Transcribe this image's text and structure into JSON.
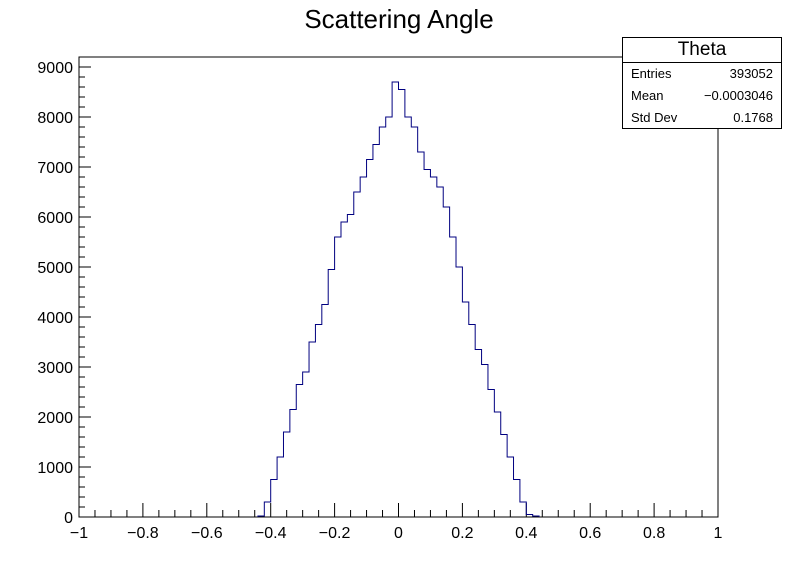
{
  "chart_data": {
    "type": "histogram",
    "title": "Scattering Angle",
    "xlabel": "",
    "ylabel": "",
    "xlim": [
      -1,
      1
    ],
    "ylim": [
      0,
      9200
    ],
    "bin_width": 0.02,
    "bin_start": -0.44,
    "x_ticks": [
      "−1",
      "−0.8",
      "−0.6",
      "−0.4",
      "−0.2",
      "0",
      "0.2",
      "0.4",
      "0.6",
      "0.8",
      "1"
    ],
    "x_tick_values": [
      -1,
      -0.8,
      -0.6,
      -0.4,
      -0.2,
      0,
      0.2,
      0.4,
      0.6,
      0.8,
      1
    ],
    "y_ticks": [
      "0",
      "1000",
      "2000",
      "3000",
      "4000",
      "5000",
      "6000",
      "7000",
      "8000",
      "9000"
    ],
    "y_tick_values": [
      0,
      1000,
      2000,
      3000,
      4000,
      5000,
      6000,
      7000,
      8000,
      9000
    ],
    "values": [
      20,
      300,
      750,
      1200,
      1700,
      2150,
      2650,
      2900,
      3500,
      3850,
      4250,
      4950,
      5600,
      5900,
      6050,
      6500,
      6800,
      7150,
      7450,
      7800,
      8000,
      8700,
      8550,
      8000,
      7800,
      7300,
      6950,
      6800,
      6600,
      6200,
      5600,
      5000,
      4300,
      3850,
      3350,
      3050,
      2550,
      2100,
      1650,
      1200,
      750,
      300,
      50,
      20
    ],
    "line_color": "#000080",
    "stats": {
      "title": "Theta",
      "rows": [
        {
          "label": "Entries",
          "value": "393052"
        },
        {
          "label": "Mean",
          "value": "−0.0003046"
        },
        {
          "label": "Std Dev",
          "value": "0.1768"
        }
      ]
    }
  }
}
